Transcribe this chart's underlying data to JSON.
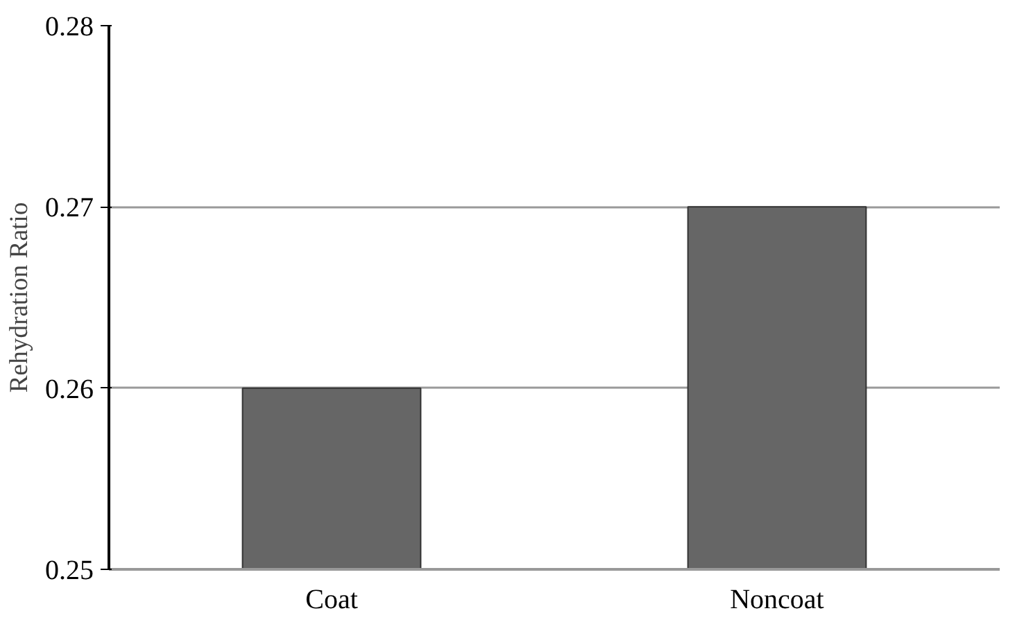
{
  "chart_data": {
    "type": "bar",
    "ylabel": "Rehydration Ratio",
    "categories": [
      "Coat",
      "Noncoat"
    ],
    "values": [
      0.26,
      0.27
    ],
    "color": "#666666",
    "ylim": [
      0.25,
      0.28
    ],
    "yticks": [
      0.25,
      0.26,
      0.27,
      0.28
    ],
    "grid": "y"
  }
}
